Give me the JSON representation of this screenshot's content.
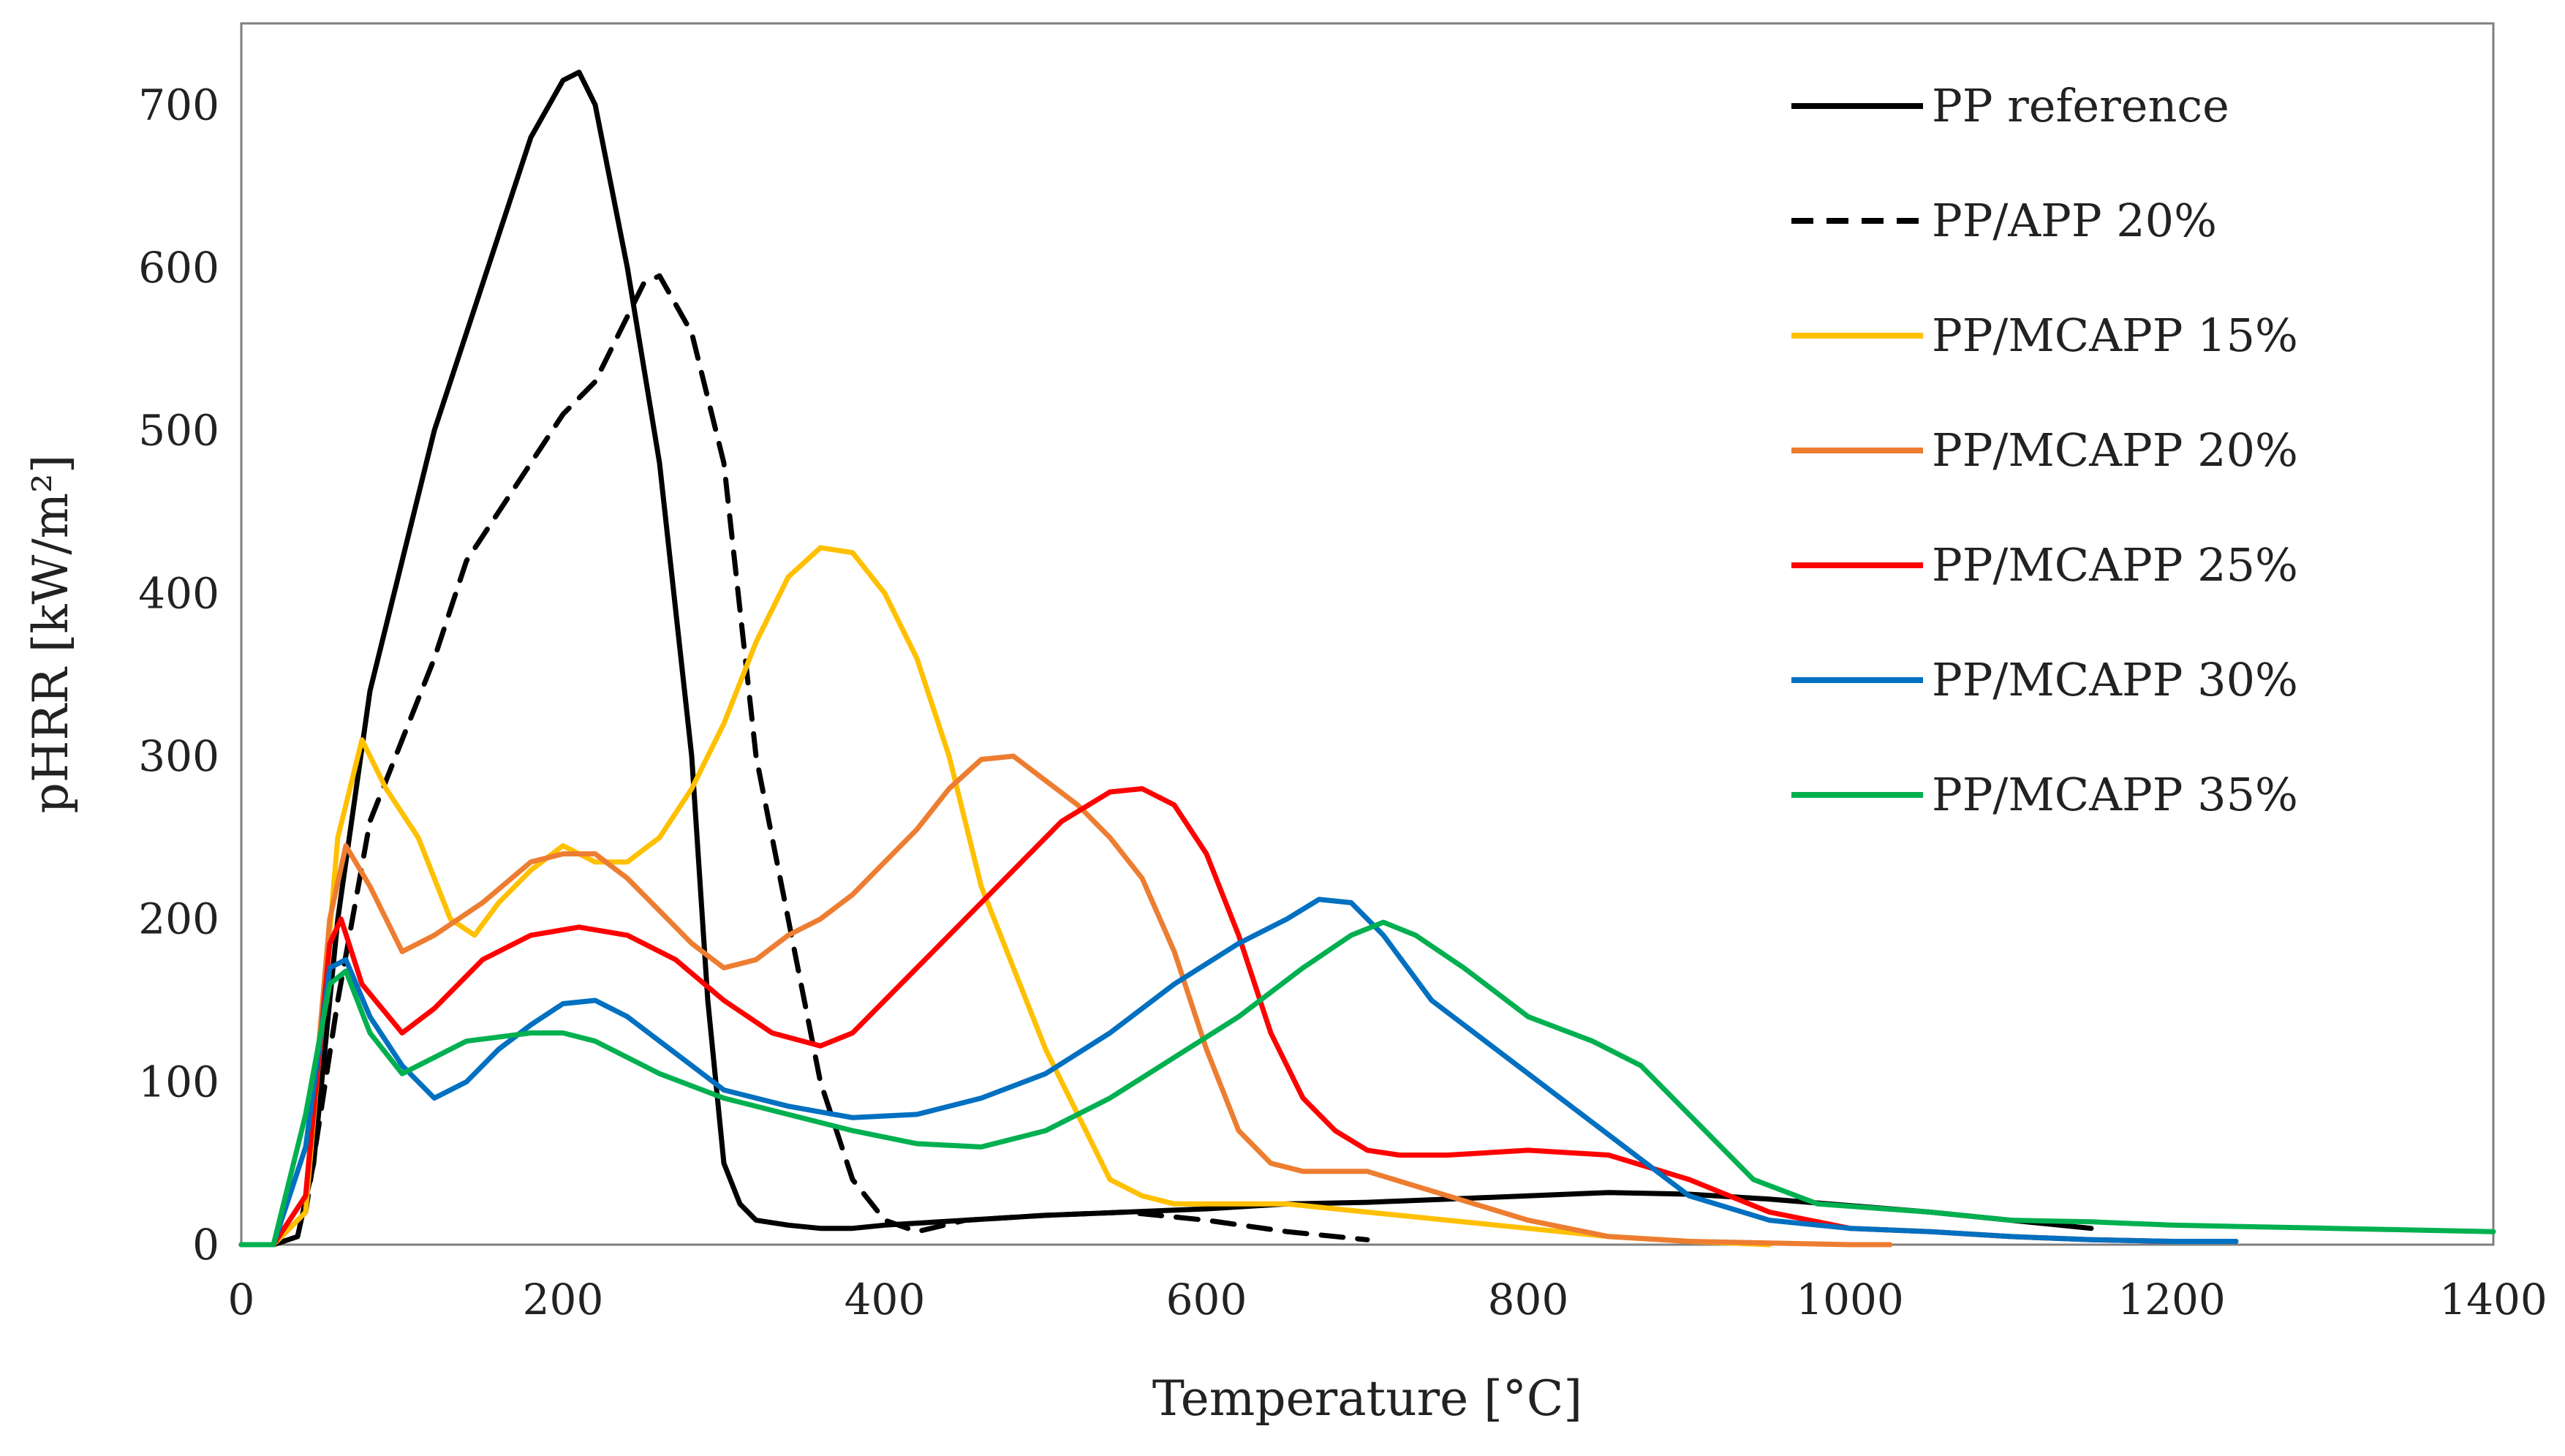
{
  "chart_data": {
    "type": "line",
    "title": "",
    "xlabel": "Temperature [°C]",
    "ylabel": "pHRR [kW/m²]",
    "xlim": [
      0,
      1400
    ],
    "ylim": [
      0,
      750
    ],
    "xticks": [
      0,
      200,
      400,
      600,
      800,
      1000,
      1200,
      1400
    ],
    "yticks": [
      0,
      100,
      200,
      300,
      400,
      500,
      600,
      700
    ],
    "grid": false,
    "legend_position": "top-right",
    "series": [
      {
        "name": "PP reference",
        "color": "#000000",
        "dash": "solid",
        "x": [
          0,
          20,
          35,
          45,
          60,
          80,
          100,
          120,
          140,
          160,
          180,
          200,
          210,
          220,
          240,
          260,
          280,
          290,
          300,
          310,
          320,
          340,
          360,
          380,
          400,
          450,
          500,
          550,
          600,
          650,
          700,
          750,
          800,
          850,
          900,
          950,
          1000,
          1050,
          1100,
          1150
        ],
        "y": [
          0,
          0,
          5,
          50,
          200,
          340,
          420,
          500,
          560,
          620,
          680,
          715,
          720,
          700,
          600,
          480,
          300,
          150,
          50,
          25,
          15,
          12,
          10,
          10,
          12,
          15,
          18,
          20,
          22,
          25,
          26,
          28,
          30,
          32,
          31,
          28,
          24,
          20,
          15,
          10
        ]
      },
      {
        "name": "PP/APP 20%",
        "color": "#000000",
        "dash": "dashed",
        "x": [
          0,
          20,
          40,
          60,
          80,
          100,
          120,
          140,
          160,
          180,
          200,
          220,
          240,
          250,
          260,
          280,
          300,
          320,
          340,
          360,
          380,
          400,
          420,
          450,
          500,
          550,
          600,
          650,
          700
        ],
        "y": [
          0,
          0,
          20,
          150,
          260,
          310,
          360,
          420,
          450,
          480,
          510,
          530,
          570,
          590,
          595,
          560,
          480,
          300,
          200,
          100,
          40,
          15,
          8,
          15,
          18,
          20,
          15,
          8,
          3
        ]
      },
      {
        "name": "PP/MCAPP 15%",
        "color": "#FFC000",
        "dash": "solid",
        "x": [
          0,
          20,
          40,
          60,
          75,
          90,
          110,
          130,
          145,
          160,
          180,
          200,
          210,
          220,
          240,
          260,
          280,
          300,
          320,
          340,
          360,
          380,
          400,
          420,
          440,
          460,
          480,
          500,
          520,
          540,
          560,
          580,
          600,
          650,
          700,
          750,
          800,
          850,
          900,
          950
        ],
        "y": [
          0,
          0,
          20,
          250,
          310,
          280,
          250,
          200,
          190,
          210,
          230,
          245,
          240,
          235,
          235,
          250,
          280,
          320,
          370,
          410,
          428,
          425,
          400,
          360,
          300,
          220,
          170,
          120,
          80,
          40,
          30,
          25,
          25,
          25,
          20,
          15,
          10,
          5,
          2,
          0
        ]
      },
      {
        "name": "PP/MCAPP 20%",
        "color": "#ED7D31",
        "dash": "solid",
        "x": [
          0,
          20,
          40,
          55,
          65,
          80,
          100,
          120,
          150,
          180,
          200,
          220,
          240,
          260,
          280,
          300,
          320,
          340,
          360,
          380,
          400,
          420,
          440,
          460,
          480,
          500,
          520,
          540,
          560,
          580,
          600,
          620,
          640,
          660,
          680,
          700,
          750,
          800,
          850,
          900,
          950,
          1000,
          1025
        ],
        "y": [
          0,
          0,
          30,
          200,
          245,
          220,
          180,
          190,
          210,
          235,
          240,
          240,
          225,
          205,
          185,
          170,
          175,
          190,
          200,
          215,
          235,
          255,
          280,
          298,
          300,
          285,
          270,
          250,
          225,
          180,
          120,
          70,
          50,
          45,
          45,
          45,
          30,
          15,
          5,
          2,
          1,
          0,
          0
        ]
      },
      {
        "name": "PP/MCAPP 25%",
        "color": "#FF0000",
        "dash": "solid",
        "x": [
          0,
          20,
          40,
          55,
          62,
          75,
          100,
          120,
          150,
          180,
          210,
          240,
          270,
          300,
          330,
          360,
          380,
          400,
          420,
          450,
          480,
          510,
          540,
          560,
          580,
          600,
          620,
          640,
          660,
          680,
          700,
          720,
          750,
          800,
          850,
          900,
          950,
          1000,
          1050,
          1100,
          1150,
          1200,
          1240
        ],
        "y": [
          0,
          0,
          30,
          185,
          200,
          160,
          130,
          145,
          175,
          190,
          195,
          190,
          175,
          150,
          130,
          122,
          130,
          150,
          170,
          200,
          230,
          260,
          278,
          280,
          270,
          240,
          190,
          130,
          90,
          70,
          58,
          55,
          55,
          58,
          55,
          40,
          20,
          10,
          8,
          5,
          3,
          2,
          2
        ]
      },
      {
        "name": "PP/MCAPP 30%",
        "color": "#0070C0",
        "dash": "solid",
        "x": [
          0,
          20,
          40,
          55,
          65,
          80,
          100,
          120,
          140,
          160,
          180,
          200,
          220,
          240,
          260,
          280,
          300,
          340,
          380,
          420,
          460,
          500,
          540,
          580,
          620,
          650,
          670,
          690,
          710,
          740,
          780,
          820,
          860,
          900,
          950,
          1000,
          1050,
          1100,
          1150,
          1200,
          1240
        ],
        "y": [
          0,
          0,
          60,
          170,
          175,
          140,
          110,
          90,
          100,
          120,
          135,
          148,
          150,
          140,
          125,
          110,
          95,
          85,
          78,
          80,
          90,
          105,
          130,
          160,
          185,
          200,
          212,
          210,
          190,
          150,
          120,
          90,
          60,
          30,
          15,
          10,
          8,
          5,
          3,
          2,
          2
        ]
      },
      {
        "name": "PP/MCAPP 35%",
        "color": "#00B050",
        "dash": "solid",
        "x": [
          0,
          20,
          40,
          55,
          65,
          80,
          100,
          140,
          180,
          200,
          220,
          260,
          300,
          340,
          380,
          420,
          460,
          500,
          540,
          580,
          620,
          660,
          690,
          710,
          730,
          760,
          800,
          840,
          870,
          900,
          940,
          980,
          1050,
          1100,
          1150,
          1200,
          1300,
          1400
        ],
        "y": [
          0,
          0,
          80,
          160,
          168,
          130,
          105,
          125,
          130,
          130,
          125,
          105,
          90,
          80,
          70,
          62,
          60,
          70,
          90,
          115,
          140,
          170,
          190,
          198,
          190,
          170,
          140,
          125,
          110,
          80,
          40,
          25,
          20,
          15,
          14,
          12,
          10,
          8
        ]
      }
    ]
  }
}
